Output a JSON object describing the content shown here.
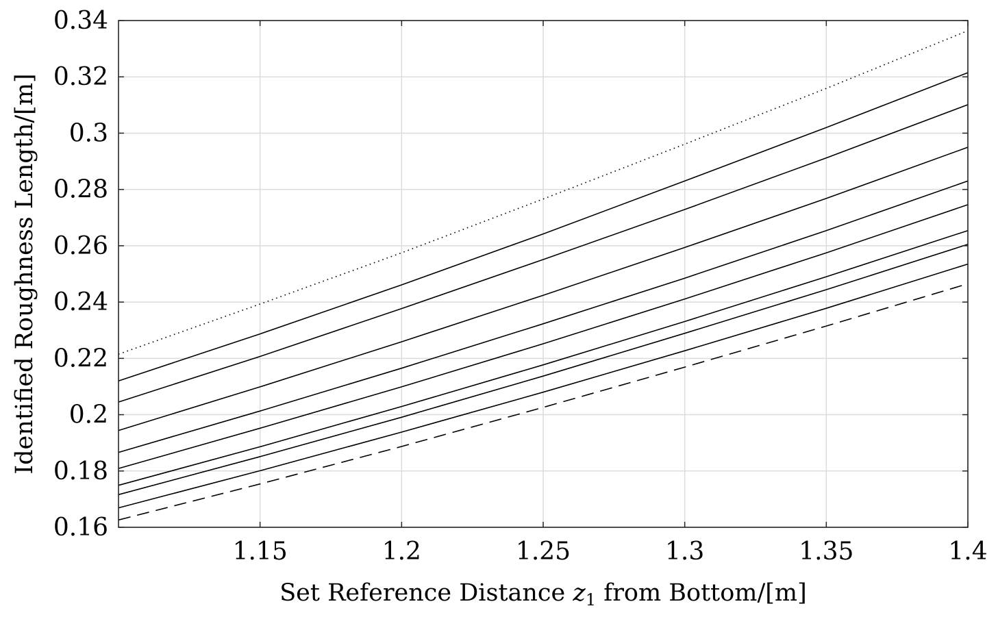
{
  "chart_data": {
    "type": "line",
    "title": "",
    "xlabel_parts": {
      "before": "Set Reference Distance ",
      "var": "z",
      "sub": "1",
      "after": " from Bottom/[m]"
    },
    "ylabel": "Identified Roughness Length/[m]",
    "xlim": [
      1.1,
      1.4
    ],
    "ylim": [
      0.16,
      0.34
    ],
    "xticks": [
      1.15,
      1.2,
      1.25,
      1.3,
      1.35,
      1.4
    ],
    "xtick_labels": [
      "1.15",
      "1.2",
      "1.25",
      "1.3",
      "1.35",
      "1.4"
    ],
    "yticks": [
      0.16,
      0.18,
      0.2,
      0.22,
      0.24,
      0.26,
      0.28,
      0.3,
      0.32,
      0.34
    ],
    "ytick_labels": [
      "0.16",
      "0.18",
      "0.2",
      "0.22",
      "0.24",
      "0.26",
      "0.28",
      "0.3",
      "0.32",
      "0.34"
    ],
    "grid": true,
    "x": [
      1.1,
      1.15,
      1.2,
      1.25,
      1.3,
      1.35,
      1.4
    ],
    "series": [
      {
        "style": "dotted",
        "values": [
          0.2215,
          0.2393,
          0.2575,
          0.2766,
          0.2961,
          0.3159,
          0.3364
        ]
      },
      {
        "style": "solid",
        "values": [
          0.212,
          0.2287,
          0.2461,
          0.2642,
          0.283,
          0.302,
          0.3215
        ]
      },
      {
        "style": "solid",
        "values": [
          0.2045,
          0.2207,
          0.2377,
          0.2551,
          0.2729,
          0.2912,
          0.3101
        ]
      },
      {
        "style": "solid",
        "values": [
          0.1944,
          0.2099,
          0.2259,
          0.2424,
          0.2594,
          0.2768,
          0.295
        ]
      },
      {
        "style": "solid",
        "values": [
          0.1866,
          0.2013,
          0.2165,
          0.2323,
          0.2485,
          0.2654,
          0.283
        ]
      },
      {
        "style": "solid",
        "values": [
          0.1809,
          0.1952,
          0.2099,
          0.2252,
          0.2411,
          0.2575,
          0.2746
        ]
      },
      {
        "style": "solid",
        "values": [
          0.1749,
          0.1886,
          0.2029,
          0.2177,
          0.2331,
          0.249,
          0.2654
        ]
      },
      {
        "style": "solid",
        "values": [
          0.1716,
          0.1851,
          0.1991,
          0.2137,
          0.2289,
          0.2444,
          0.2605
        ]
      },
      {
        "style": "solid",
        "values": [
          0.1669,
          0.1801,
          0.1938,
          0.208,
          0.2227,
          0.2378,
          0.2535
        ]
      },
      {
        "style": "dashed",
        "values": [
          0.1626,
          0.1754,
          0.1887,
          0.2026,
          0.2169,
          0.2315,
          0.2465
        ]
      }
    ]
  }
}
